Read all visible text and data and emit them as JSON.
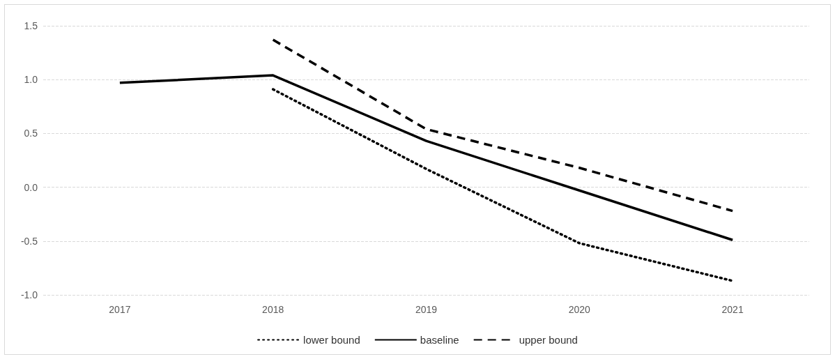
{
  "chart_data": {
    "type": "line",
    "categories": [
      "2017",
      "2018",
      "2019",
      "2020",
      "2021"
    ],
    "series": [
      {
        "name": "lower bound",
        "color": "#000000",
        "line_style": "dotted",
        "values": [
          null,
          0.91,
          0.17,
          -0.52,
          -0.87
        ]
      },
      {
        "name": "baseline",
        "color": "#000000",
        "line_style": "solid",
        "values": [
          0.97,
          1.04,
          0.43,
          -0.03,
          -0.49
        ]
      },
      {
        "name": "upper bound",
        "color": "#000000",
        "line_style": "dashed",
        "values": [
          null,
          1.37,
          0.54,
          0.18,
          -0.22
        ]
      }
    ],
    "ylim": [
      -1,
      1.5
    ],
    "yticks": [
      {
        "value": -1,
        "label": "-1.0"
      },
      -0.5,
      {
        "value": 0,
        "label": "0.0"
      },
      0.5,
      {
        "value": 1,
        "label": "1.0"
      },
      1.5
    ],
    "grid": "y",
    "legend": "bottom",
    "marker": "none"
  }
}
